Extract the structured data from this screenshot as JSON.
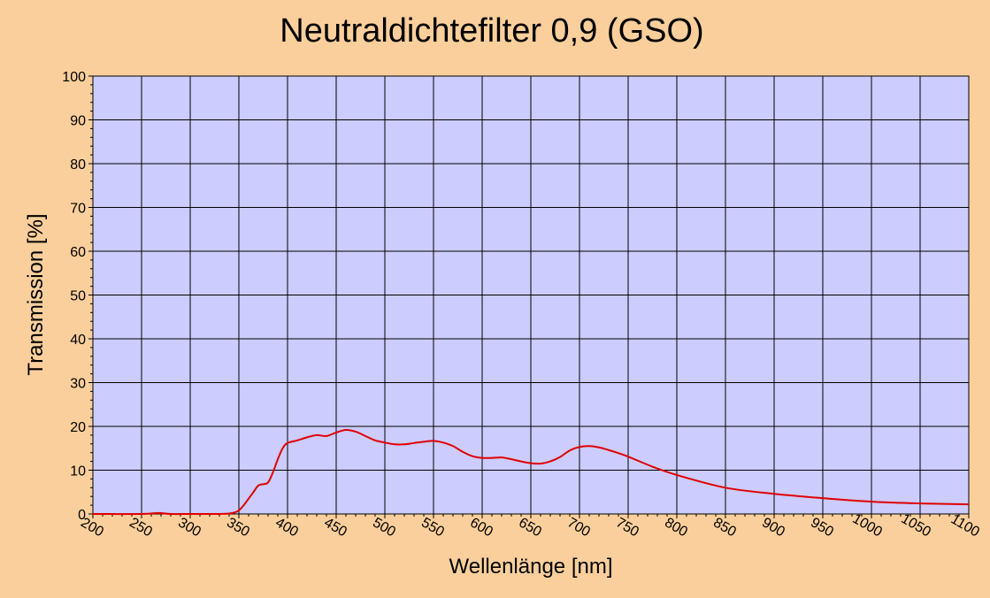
{
  "chart_data": {
    "type": "line",
    "title": "Neutraldichtefilter 0,9 (GSO)",
    "xlabel": "Wellenlänge [nm]",
    "ylabel": "Transmission [%]",
    "xlim": [
      200,
      1100
    ],
    "ylim": [
      0,
      100
    ],
    "x_ticks": [
      200,
      250,
      300,
      350,
      400,
      450,
      500,
      550,
      600,
      650,
      700,
      750,
      800,
      850,
      900,
      950,
      1000,
      1050,
      1100
    ],
    "y_ticks": [
      0,
      10,
      20,
      30,
      40,
      50,
      60,
      70,
      80,
      90,
      100
    ],
    "grid": true,
    "colors": {
      "background": "#FBCF9C",
      "plot_area": "#CCCCFF",
      "line": "#E00000"
    },
    "series": [
      {
        "x": [
          200,
          250,
          265,
          270,
          280,
          300,
          330,
          340,
          345,
          350,
          355,
          360,
          365,
          370,
          375,
          380,
          385,
          390,
          395,
          400,
          410,
          420,
          430,
          440,
          450,
          460,
          470,
          480,
          490,
          500,
          510,
          520,
          530,
          540,
          550,
          560,
          570,
          580,
          590,
          600,
          610,
          620,
          630,
          640,
          650,
          660,
          670,
          680,
          690,
          700,
          710,
          720,
          730,
          740,
          750,
          775,
          800,
          850,
          900,
          950,
          1000,
          1050,
          1100
        ],
        "y": [
          0,
          0,
          0.2,
          0.2,
          0,
          0,
          0,
          0.1,
          0.3,
          0.8,
          2,
          3.5,
          5,
          6.5,
          6.8,
          7.2,
          9.5,
          12.5,
          15,
          16.2,
          16.8,
          17.5,
          18,
          17.8,
          18.6,
          19.2,
          18.8,
          17.8,
          16.8,
          16.3,
          15.9,
          15.9,
          16.2,
          16.5,
          16.7,
          16.3,
          15.5,
          14.2,
          13.2,
          12.8,
          12.8,
          12.9,
          12.5,
          12,
          11.6,
          11.5,
          12,
          13,
          14.5,
          15.3,
          15.5,
          15.2,
          14.6,
          13.9,
          13.1,
          10.8,
          8.9,
          6,
          4.6,
          3.6,
          2.8,
          2.4,
          2.2
        ]
      }
    ]
  }
}
